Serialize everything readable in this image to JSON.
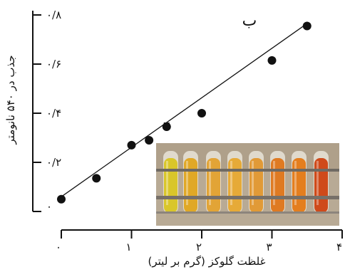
{
  "chart_data": {
    "type": "scatter",
    "panel_label": "ب",
    "xlabel": "غلظت گلوکز (گرم بر لیتر)",
    "ylabel": "جذب در ۵۴۰ نانومتر",
    "xlim": [
      0,
      4
    ],
    "ylim": [
      0,
      0.8
    ],
    "x_ticks": [
      {
        "value": 0,
        "label": "۰"
      },
      {
        "value": 1,
        "label": "۱"
      },
      {
        "value": 2,
        "label": "۲"
      },
      {
        "value": 3,
        "label": "۳"
      },
      {
        "value": 4,
        "label": "۴"
      }
    ],
    "y_ticks": [
      {
        "value": 0,
        "label": "۰"
      },
      {
        "value": 0.2,
        "label": "۰/۲"
      },
      {
        "value": 0.4,
        "label": "۰/۴"
      },
      {
        "value": 0.6,
        "label": "۰/۶"
      },
      {
        "value": 0.8,
        "label": "۰/۸"
      }
    ],
    "points": [
      {
        "x": 0.0,
        "y": 0.05
      },
      {
        "x": 0.5,
        "y": 0.135
      },
      {
        "x": 1.0,
        "y": 0.27
      },
      {
        "x": 1.25,
        "y": 0.29
      },
      {
        "x": 1.5,
        "y": 0.345,
        "err": 0.015
      },
      {
        "x": 2.0,
        "y": 0.4
      },
      {
        "x": 3.0,
        "y": 0.615
      },
      {
        "x": 3.5,
        "y": 0.755
      }
    ],
    "fit_line": {
      "x": [
        0.0,
        3.5
      ],
      "y": [
        0.06,
        0.765
      ]
    },
    "grid": false,
    "inset": "photo of test tubes showing yellow-to-red color gradient"
  }
}
